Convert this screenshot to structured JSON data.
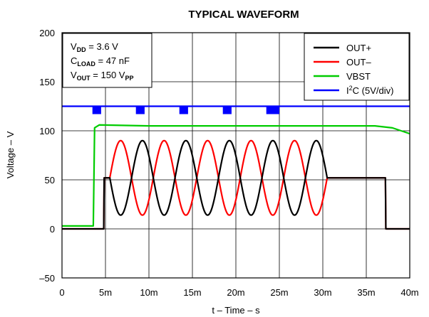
{
  "chart_data": {
    "type": "line",
    "title": "TYPICAL WAVEFORM",
    "xlabel": "t – Time – s",
    "ylabel": "Voltage – V",
    "xlim": [
      0,
      40
    ],
    "ylim": [
      -50,
      200
    ],
    "x_ticks": [
      0,
      5,
      10,
      15,
      20,
      25,
      30,
      35,
      40
    ],
    "x_tick_labels": [
      "0",
      "5m",
      "10m",
      "15m",
      "20m",
      "25m",
      "30m",
      "35m",
      "40m"
    ],
    "y_ticks": [
      -50,
      0,
      50,
      100,
      150,
      200
    ],
    "y_tick_labels": [
      "–50",
      "0",
      "50",
      "100",
      "150",
      "200"
    ],
    "grid": true,
    "legend_position": "top-right",
    "annotations": [
      {
        "main": "V",
        "sub": "DD",
        "rest": " = 3.6 V"
      },
      {
        "main": "C",
        "sub": "LOAD",
        "rest": " = 47 nF"
      },
      {
        "main": "V",
        "sub": "OUT",
        "rest": " = 150 V",
        "sub2": "PP"
      }
    ],
    "series": [
      {
        "name": "OUT+",
        "color": "#000000",
        "segments": [
          {
            "kind": "line",
            "points": [
              [
                0,
                0
              ],
              [
                4.8,
                0
              ],
              [
                4.85,
                52
              ],
              [
                5.5,
                52
              ]
            ]
          },
          {
            "kind": "sine",
            "start": 5.5,
            "end": 30.5,
            "center": 52,
            "amplitude": 38,
            "period": 5.0,
            "phase": -1
          },
          {
            "kind": "line",
            "points": [
              [
                30.5,
                52
              ],
              [
                37.2,
                52
              ],
              [
                37.25,
                0
              ],
              [
                40,
                0
              ]
            ]
          }
        ]
      },
      {
        "name": "OUT–",
        "color": "#ff0000",
        "segments": [
          {
            "kind": "line",
            "points": [
              [
                0,
                0
              ],
              [
                4.8,
                0
              ],
              [
                4.85,
                52
              ],
              [
                5.5,
                52
              ]
            ]
          },
          {
            "kind": "sine",
            "start": 5.5,
            "end": 30.5,
            "center": 52,
            "amplitude": 38,
            "period": 5.0,
            "phase": 1
          },
          {
            "kind": "line",
            "points": [
              [
                30.5,
                52
              ],
              [
                37.2,
                52
              ],
              [
                37.25,
                0
              ],
              [
                40,
                0
              ]
            ]
          }
        ]
      },
      {
        "name": "VBST",
        "color": "#00cc00",
        "segments": [
          {
            "kind": "line",
            "points": [
              [
                0,
                3
              ],
              [
                3.6,
                3
              ],
              [
                3.75,
                103
              ],
              [
                4.3,
                106
              ],
              [
                10,
                105
              ],
              [
                20,
                105
              ],
              [
                30,
                105
              ],
              [
                36,
                105
              ],
              [
                38,
                103
              ],
              [
                40,
                97
              ]
            ]
          }
        ]
      },
      {
        "name": "I2C (5V/div)",
        "color": "#0000ff",
        "segments": [
          {
            "kind": "line",
            "points": [
              [
                0,
                125
              ],
              [
                40,
                125
              ]
            ]
          }
        ],
        "pulses": [
          {
            "start": 3.5,
            "end": 4.5,
            "low": 117
          },
          {
            "start": 8.5,
            "end": 9.5,
            "low": 117
          },
          {
            "start": 13.5,
            "end": 14.5,
            "low": 117
          },
          {
            "start": 18.5,
            "end": 19.5,
            "low": 117
          },
          {
            "start": 23.5,
            "end": 25.0,
            "low": 117
          }
        ]
      }
    ],
    "legend": [
      {
        "main": "OUT+",
        "sup": "",
        "rest": "",
        "color": "#000000"
      },
      {
        "main": "OUT–",
        "sup": "",
        "rest": "",
        "color": "#ff0000"
      },
      {
        "main": "VBST",
        "sup": "",
        "rest": "",
        "color": "#00cc00"
      },
      {
        "main": "I",
        "sup": "2",
        "rest": "C (5V/div)",
        "color": "#0000ff"
      }
    ]
  }
}
